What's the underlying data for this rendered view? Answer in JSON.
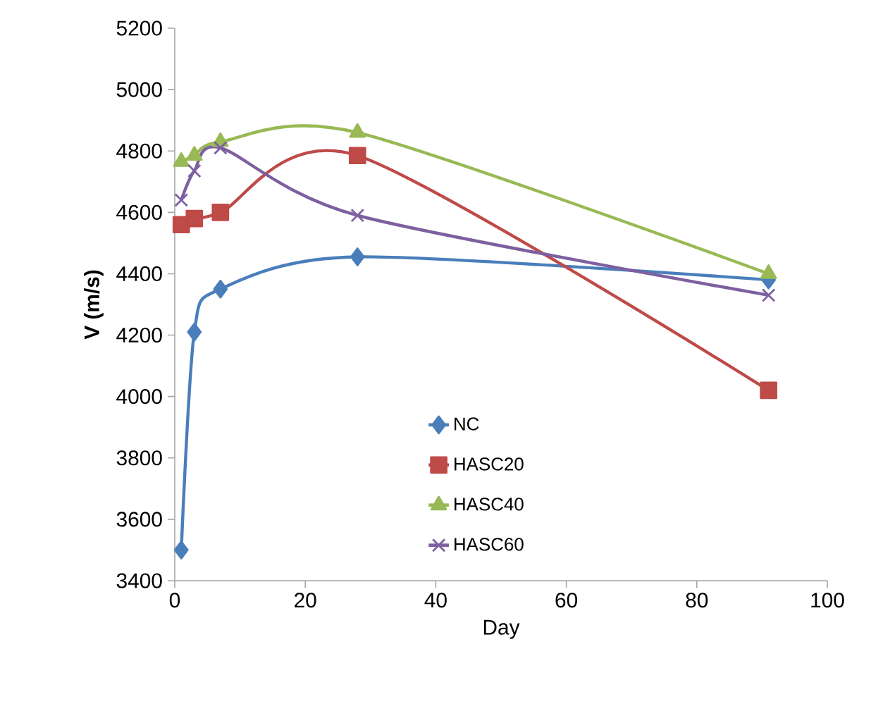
{
  "chart_data": {
    "type": "line",
    "xlabel": "Day",
    "ylabel": "V (m/s)",
    "xlim": [
      0,
      100
    ],
    "xticks": [
      0,
      20,
      40,
      60,
      80,
      100
    ],
    "ylim": [
      3400,
      5200
    ],
    "yticks": [
      3400,
      3600,
      3800,
      4000,
      4200,
      4400,
      4600,
      4800,
      5000,
      5200
    ],
    "x": [
      1,
      3,
      7,
      28,
      91
    ],
    "legend": "bottom",
    "grid": false,
    "series": [
      {
        "name": "NC",
        "color": "#4a7ebb",
        "marker": "diamond",
        "values": [
          3500,
          4210,
          4350,
          4455,
          4380
        ]
      },
      {
        "name": "HASC20",
        "color": "#be4b48",
        "marker": "square",
        "values": [
          4560,
          4580,
          4600,
          4785,
          4020
        ]
      },
      {
        "name": "HASC40",
        "color": "#98b954",
        "marker": "triangle",
        "values": [
          4765,
          4785,
          4830,
          4860,
          4400
        ]
      },
      {
        "name": "HASC60",
        "color": "#7d60a0",
        "marker": "cross",
        "values": [
          4640,
          4735,
          4810,
          4590,
          4330
        ]
      }
    ]
  }
}
